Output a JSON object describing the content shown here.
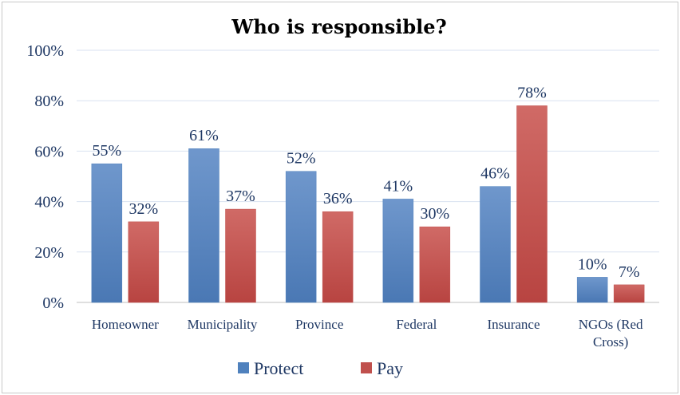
{
  "chart_data": {
    "type": "bar",
    "title": "Who is responsible?",
    "categories": [
      "Homeowner",
      "Municipality",
      "Province",
      "Federal",
      "Insurance",
      "NGOs (Red Cross)"
    ],
    "category_lines": [
      [
        "Homeowner"
      ],
      [
        "Municipality"
      ],
      [
        "Province"
      ],
      [
        "Federal"
      ],
      [
        "Insurance"
      ],
      [
        "NGOs (Red",
        "Cross)"
      ]
    ],
    "series": [
      {
        "name": "Protect",
        "values": [
          55,
          61,
          52,
          41,
          46,
          10
        ],
        "labels": [
          "55%",
          "61%",
          "52%",
          "41%",
          "46%",
          "10%"
        ],
        "color": "#4f81bd"
      },
      {
        "name": "Pay",
        "values": [
          32,
          37,
          36,
          30,
          78,
          7
        ],
        "labels": [
          "32%",
          "37%",
          "36%",
          "30%",
          "78%",
          "7%"
        ],
        "color": "#c0504d"
      }
    ],
    "ylim": [
      0,
      100
    ],
    "yticks": [
      0,
      20,
      40,
      60,
      80,
      100
    ],
    "ytick_labels": [
      "0%",
      "20%",
      "40%",
      "60%",
      "80%",
      "100%"
    ],
    "grid": true,
    "legend_position": "bottom"
  }
}
